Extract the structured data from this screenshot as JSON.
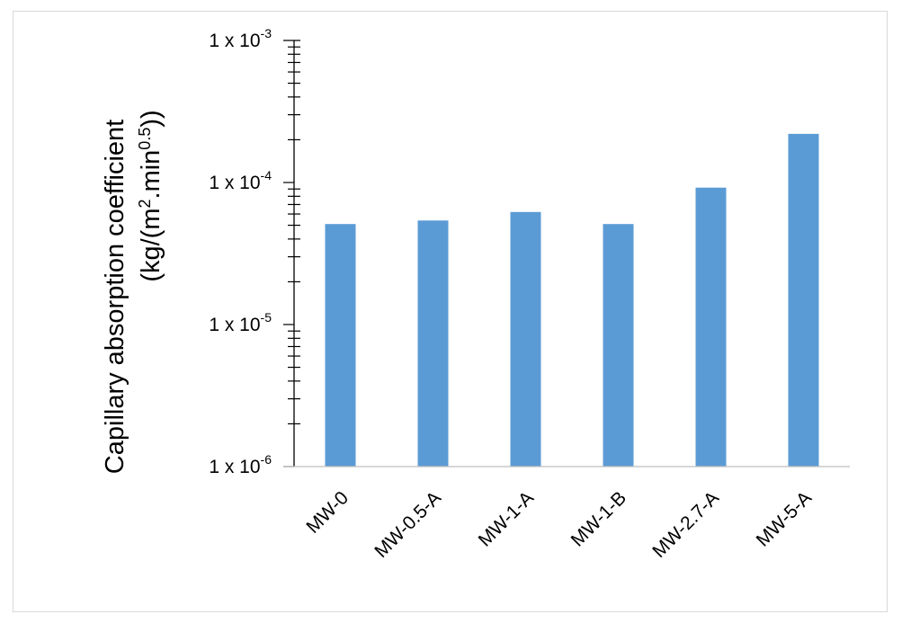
{
  "chart_data": {
    "type": "bar",
    "title": "",
    "xlabel": "",
    "ylabel_line1": "Capillary absorption coefficient",
    "ylabel_line2_parts": [
      "(kg/(m",
      "2",
      ".min",
      "0.5",
      "))"
    ],
    "y_scale": "log",
    "ylim": [
      1e-06,
      0.001
    ],
    "y_ticks": [
      {
        "value": 1e-06,
        "base": "1 x 10",
        "exp": "-6"
      },
      {
        "value": 1e-05,
        "base": "1 x 10",
        "exp": "-5"
      },
      {
        "value": 0.0001,
        "base": "1 x 10",
        "exp": "-4"
      },
      {
        "value": 0.001,
        "base": "1 x 10",
        "exp": "-3"
      }
    ],
    "categories": [
      "MW-0",
      "MW-0.5-A",
      "MW-1-A",
      "MW-1-B",
      "MW-2.7-A",
      "MW-5-A"
    ],
    "values": [
      5.1e-05,
      5.4e-05,
      6.2e-05,
      5.1e-05,
      9.2e-05,
      0.00022
    ],
    "bar_color": "#5b9bd5",
    "axis_color": "#000000",
    "grid": false,
    "legend": "none"
  }
}
